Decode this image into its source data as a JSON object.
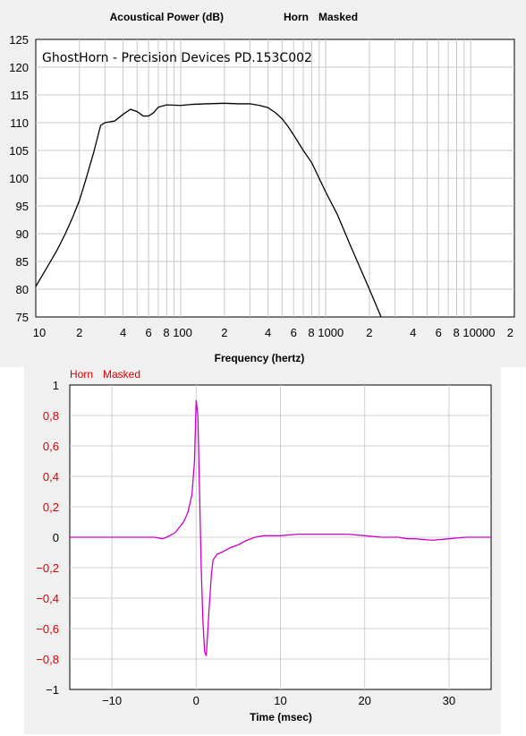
{
  "chart_data": [
    {
      "type": "line",
      "title": "Acoustical Power (dB)",
      "legend": [
        "Horn",
        "Masked"
      ],
      "annotation": "GhostHorn - Precision Devices PD.153C002",
      "xlabel": "Frequency (hertz)",
      "ylabel": "",
      "x_scale": "log",
      "xlim": [
        10,
        20000
      ],
      "ylim": [
        75,
        125
      ],
      "ytick_labels": [
        "75",
        "80",
        "85",
        "90",
        "95",
        "100",
        "105",
        "110",
        "115",
        "120",
        "125"
      ],
      "xtick_labels": [
        "10",
        "2",
        "4",
        "6",
        "8 100",
        "2",
        "4",
        "6",
        "8 1000",
        "2",
        "4",
        "6",
        "8 10000",
        "2"
      ],
      "grid": true,
      "series": [
        {
          "name": "Horn",
          "color": "#000000",
          "x": [
            10,
            12,
            14,
            16,
            18,
            20,
            22,
            25,
            28,
            30,
            35,
            40,
            45,
            50,
            55,
            60,
            65,
            70,
            80,
            100,
            120,
            150,
            200,
            250,
            300,
            350,
            400,
            450,
            500,
            550,
            600,
            700,
            800,
            900,
            1000,
            1200,
            1500,
            2000,
            2500
          ],
          "y": [
            80.5,
            84,
            87,
            90,
            93,
            96,
            99.5,
            104.5,
            109.5,
            110,
            110.3,
            111.5,
            112.4,
            112,
            111.2,
            111.2,
            111.8,
            112.8,
            113.2,
            113.1,
            113.3,
            113.4,
            113.5,
            113.4,
            113.4,
            113.1,
            112.7,
            111.8,
            110.7,
            109.3,
            107.8,
            105,
            102.8,
            100,
            97.5,
            93.5,
            87.5,
            80,
            74
          ]
        }
      ]
    },
    {
      "type": "line",
      "title": "",
      "legend": [
        "Horn",
        "Masked"
      ],
      "xlabel": "Time (msec)",
      "ylabel": "",
      "xlim": [
        -15,
        35
      ],
      "ylim": [
        -1,
        1
      ],
      "ytick_labels": [
        "1",
        "0,8",
        "0,6",
        "0,4",
        "0,2",
        "0",
        "-0,2",
        "-0,4",
        "-0,6",
        "-0,8",
        "-1"
      ],
      "xtick_labels": [
        "-10",
        "0",
        "10",
        "20",
        "30"
      ],
      "grid": true,
      "series": [
        {
          "name": "Horn",
          "color": "#cc00cc",
          "x": [
            -15,
            -8,
            -5,
            -4,
            -3.5,
            -2.5,
            -1.5,
            -1,
            -0.5,
            -0.2,
            0,
            0.2,
            0.4,
            0.6,
            0.8,
            1,
            1.2,
            1.5,
            1.8,
            2,
            2.5,
            3,
            4,
            5,
            6,
            7,
            8,
            10,
            12,
            15,
            18,
            20,
            22,
            23,
            23.5,
            24,
            25,
            26,
            28,
            30,
            32,
            35
          ],
          "y": [
            0,
            0,
            0,
            -0.01,
            0,
            0.03,
            0.1,
            0.16,
            0.28,
            0.5,
            0.9,
            0.8,
            0.3,
            -0.2,
            -0.55,
            -0.75,
            -0.78,
            -0.5,
            -0.25,
            -0.15,
            -0.11,
            -0.1,
            -0.07,
            -0.05,
            -0.02,
            0.0,
            0.01,
            0.01,
            0.02,
            0.02,
            0.02,
            0.01,
            0.0,
            0.0,
            0.0,
            0.0,
            -0.01,
            -0.01,
            -0.02,
            -0.01,
            0.0,
            0.0
          ]
        }
      ]
    }
  ]
}
